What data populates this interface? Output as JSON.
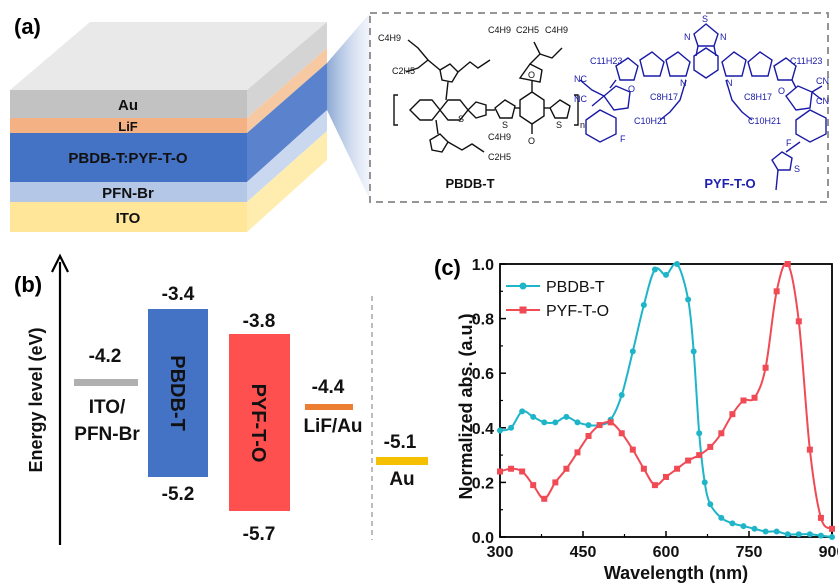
{
  "panels": {
    "a": {
      "label": "(a)",
      "device_layers": [
        {
          "name": "Au",
          "color": "#c2c2c2"
        },
        {
          "name": "LiF",
          "color": "#f4b183"
        },
        {
          "name": "PBDB-T:PYF-T-O",
          "color": "#4472c4"
        },
        {
          "name": "PFN-Br",
          "color": "#b4c7e7"
        },
        {
          "name": "ITO",
          "color": "#ffe699"
        }
      ],
      "molecules": [
        {
          "name": "PBDB-T",
          "color": "#111111"
        },
        {
          "name": "PYF-T-O",
          "color": "#2020b0"
        }
      ],
      "atoms": {
        "c4h9": "C4H9",
        "c2h5": "C2H5",
        "o": "O",
        "s": "S",
        "n_sub": "n",
        "c11h23": "C11H23",
        "c8h17": "C8H17",
        "c10h21": "C10H21",
        "nc": "NC",
        "cn": "CN",
        "f": "F",
        "n": "N"
      }
    },
    "b": {
      "label": "(b)",
      "y_axis_label": "Energy level (eV)",
      "levels": [
        {
          "name": "ITO/\nPFN-Br",
          "value": "-4.2",
          "color": "#b0b0b0"
        },
        {
          "name": "LiF/Au",
          "value": "-4.4",
          "color": "#ed7d31"
        },
        {
          "name": "Au",
          "value": "-5.1",
          "color": "#f5c000"
        }
      ],
      "bars": [
        {
          "name": "PBDB-T",
          "lumo": "-3.4",
          "homo": "-5.2",
          "color": "#4472c4"
        },
        {
          "name": "PYF-T-O",
          "lumo": "-3.8",
          "homo": "-5.7",
          "color": "#ff5050"
        }
      ]
    },
    "c": {
      "label": "(c)"
    }
  },
  "chart_data": {
    "type": "line",
    "xlabel": "Wavelength (nm)",
    "ylabel": "Normalized abs. (a.u.)",
    "xlim": [
      300,
      900
    ],
    "ylim": [
      0.0,
      1.0
    ],
    "xticks": [
      "300",
      "450",
      "600",
      "750",
      "900"
    ],
    "yticks": [
      "0.0",
      "0.2",
      "0.4",
      "0.6",
      "0.8",
      "1.0"
    ],
    "legend_position": "top-left",
    "series": [
      {
        "name": "PBDB-T",
        "color": "#1fb5c8",
        "marker": "circle",
        "x": [
          300,
          320,
          340,
          360,
          380,
          400,
          420,
          440,
          460,
          480,
          500,
          520,
          540,
          560,
          580,
          600,
          620,
          640,
          650,
          660,
          670,
          680,
          700,
          720,
          740,
          760,
          780,
          800,
          820,
          840,
          860,
          880,
          900
        ],
        "y": [
          0.39,
          0.4,
          0.46,
          0.44,
          0.42,
          0.42,
          0.44,
          0.42,
          0.41,
          0.41,
          0.43,
          0.52,
          0.68,
          0.85,
          0.98,
          0.96,
          1.0,
          0.87,
          0.68,
          0.38,
          0.2,
          0.12,
          0.07,
          0.05,
          0.04,
          0.03,
          0.02,
          0.02,
          0.01,
          0.01,
          0.01,
          0.005,
          0.0
        ]
      },
      {
        "name": "PYF-T-O",
        "color": "#f04a55",
        "marker": "square",
        "x": [
          300,
          320,
          340,
          360,
          380,
          400,
          420,
          440,
          460,
          480,
          500,
          520,
          540,
          560,
          580,
          600,
          620,
          640,
          660,
          680,
          700,
          720,
          740,
          760,
          780,
          800,
          820,
          840,
          860,
          880,
          900
        ],
        "y": [
          0.24,
          0.25,
          0.24,
          0.19,
          0.14,
          0.2,
          0.25,
          0.31,
          0.37,
          0.41,
          0.42,
          0.38,
          0.32,
          0.25,
          0.19,
          0.22,
          0.25,
          0.28,
          0.3,
          0.33,
          0.38,
          0.45,
          0.5,
          0.51,
          0.62,
          0.9,
          1.0,
          0.79,
          0.32,
          0.07,
          0.03
        ]
      }
    ]
  }
}
